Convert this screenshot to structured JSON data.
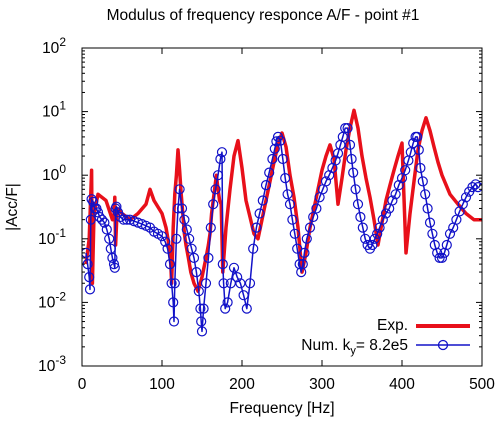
{
  "chart_data": {
    "type": "line",
    "title": "Modulus of frequency responce A/F - point #1",
    "xlabel": "Frequency [Hz]",
    "ylabel": "|Acc/F|",
    "xlim": [
      0,
      500
    ],
    "ylim": [
      0.001,
      100
    ],
    "yscale": "log",
    "grid": false,
    "legend_position": "bottom-right",
    "x_ticks": [
      "0",
      "100",
      "200",
      "300",
      "400",
      "500"
    ],
    "y_ticks": [
      {
        "base": "10",
        "exp": "-3"
      },
      {
        "base": "10",
        "exp": "-2"
      },
      {
        "base": "10",
        "exp": "-1"
      },
      {
        "base": "10",
        "exp": "0"
      },
      {
        "base": "10",
        "exp": "1"
      },
      {
        "base": "10",
        "exp": "2"
      }
    ],
    "series": [
      {
        "name": "Exp.",
        "color": "#e8101a",
        "style": "thick-line",
        "x": [
          5,
          9,
          11,
          12,
          13,
          15,
          20,
          30,
          38,
          40,
          41,
          42,
          44,
          50,
          60,
          70,
          80,
          85,
          90,
          100,
          105,
          108,
          111,
          112,
          113,
          114,
          116,
          118,
          120,
          122,
          124,
          126,
          128,
          130,
          133,
          136,
          140,
          145,
          150,
          155,
          158,
          160,
          162,
          165,
          168,
          170,
          172,
          174,
          176,
          180,
          185,
          190,
          195,
          200,
          205,
          210,
          215,
          220,
          225,
          230,
          235,
          240,
          245,
          250,
          255,
          260,
          265,
          270,
          275,
          280,
          285,
          290,
          295,
          300,
          305,
          310,
          315,
          320,
          325,
          330,
          335,
          340,
          345,
          350,
          355,
          360,
          365,
          370,
          375,
          380,
          385,
          390,
          395,
          400,
          405,
          410,
          415,
          420,
          425,
          430,
          435,
          440,
          445,
          450,
          460,
          470,
          480,
          490,
          500
        ],
        "y": [
          0.04,
          0.1,
          0.5,
          1.2,
          0.02,
          0.25,
          0.5,
          0.4,
          0.2,
          0.22,
          0.45,
          0.08,
          0.3,
          0.25,
          0.2,
          0.25,
          0.35,
          0.6,
          0.4,
          0.25,
          0.15,
          0.09,
          0.04,
          0.02,
          0.05,
          0.15,
          0.5,
          1.0,
          2.5,
          1.2,
          0.5,
          0.25,
          0.12,
          0.08,
          0.05,
          0.03,
          0.02,
          0.015,
          0.025,
          0.05,
          0.08,
          0.12,
          0.25,
          0.5,
          1.0,
          0.6,
          0.4,
          0.35,
          0.03,
          0.15,
          0.6,
          2.0,
          3.5,
          1.3,
          0.4,
          0.22,
          0.12,
          0.1,
          0.2,
          0.4,
          0.8,
          1.6,
          3.0,
          4.6,
          2.8,
          1.0,
          0.45,
          0.15,
          0.03,
          0.06,
          0.15,
          0.3,
          0.6,
          1.2,
          2.0,
          3.0,
          1.8,
          0.35,
          0.9,
          2.5,
          5.5,
          10.5,
          5.5,
          2.0,
          0.9,
          0.45,
          0.2,
          0.08,
          0.18,
          0.4,
          0.7,
          1.2,
          2.0,
          3.2,
          0.06,
          0.25,
          0.8,
          2.5,
          5.0,
          8.0,
          5.0,
          2.8,
          1.6,
          1.0,
          0.5,
          0.35,
          0.25,
          0.2,
          0.2
        ]
      },
      {
        "name": "Num. k",
        "name_sub": "y",
        "name_suffix": "= 8.2e5",
        "color": "#1212c8",
        "style": "line-circles",
        "x": [
          5,
          7,
          9,
          10,
          11,
          12,
          14,
          16,
          18,
          20,
          22,
          25,
          28,
          31,
          34,
          36,
          38,
          40,
          41,
          42,
          43,
          45,
          48,
          52,
          56,
          60,
          65,
          70,
          75,
          80,
          85,
          90,
          95,
          100,
          104,
          107,
          110,
          112,
          114,
          115,
          116,
          118,
          120,
          122,
          125,
          128,
          131,
          134,
          137,
          140,
          143,
          146,
          148,
          149,
          150,
          152,
          155,
          158,
          161,
          164,
          167,
          170,
          173,
          175,
          176,
          177,
          179,
          182,
          186,
          190,
          194,
          198,
          202,
          206,
          210,
          214,
          218,
          222,
          226,
          230,
          234,
          238,
          241,
          243,
          245,
          248,
          251,
          254,
          257,
          260,
          263,
          266,
          269,
          272,
          274,
          276,
          278,
          281,
          285,
          289,
          293,
          297,
          301,
          305,
          309,
          313,
          317,
          320,
          323,
          326,
          329,
          332,
          335,
          337,
          339,
          342,
          345,
          348,
          351,
          354,
          357,
          360,
          363,
          366,
          369,
          372,
          376,
          380,
          384,
          388,
          392,
          396,
          400,
          404,
          408,
          411,
          414,
          417,
          419,
          421,
          423,
          426,
          429,
          432,
          435,
          438,
          441,
          444,
          447,
          450,
          453,
          456,
          460,
          464,
          468,
          472,
          476,
          480,
          484,
          488,
          492,
          495
        ],
        "y": [
          0.06,
          0.04,
          0.025,
          0.016,
          0.2,
          0.42,
          0.38,
          0.3,
          0.3,
          0.26,
          0.22,
          0.2,
          0.18,
          0.14,
          0.1,
          0.07,
          0.05,
          0.04,
          0.035,
          0.3,
          0.32,
          0.26,
          0.22,
          0.2,
          0.2,
          0.2,
          0.19,
          0.18,
          0.17,
          0.16,
          0.15,
          0.13,
          0.12,
          0.11,
          0.09,
          0.07,
          0.04,
          0.02,
          0.01,
          0.005,
          0.02,
          0.1,
          0.3,
          0.6,
          0.3,
          0.2,
          0.14,
          0.1,
          0.07,
          0.05,
          0.03,
          0.015,
          0.008,
          0.005,
          0.0035,
          0.008,
          0.02,
          0.05,
          0.15,
          0.35,
          0.6,
          1.0,
          1.8,
          2.3,
          0.04,
          0.02,
          0.008,
          0.01,
          0.02,
          0.035,
          0.025,
          0.02,
          0.013,
          0.008,
          0.02,
          0.07,
          0.15,
          0.25,
          0.4,
          0.7,
          1.1,
          1.8,
          2.6,
          3.4,
          4.0,
          3.5,
          1.8,
          0.9,
          0.5,
          0.35,
          0.2,
          0.12,
          0.07,
          0.04,
          0.03,
          0.04,
          0.06,
          0.1,
          0.15,
          0.22,
          0.3,
          0.45,
          0.6,
          0.8,
          1.0,
          1.3,
          1.7,
          2.2,
          3.0,
          4.0,
          5.5,
          5.5,
          3.0,
          1.8,
          1.1,
          0.6,
          0.35,
          0.22,
          0.15,
          0.1,
          0.08,
          0.07,
          0.08,
          0.1,
          0.12,
          0.15,
          0.2,
          0.25,
          0.3,
          0.4,
          0.5,
          0.7,
          0.9,
          1.2,
          1.7,
          2.3,
          3.2,
          4.0,
          4.0,
          2.5,
          1.3,
          0.8,
          0.5,
          0.3,
          0.18,
          0.12,
          0.08,
          0.06,
          0.05,
          0.05,
          0.06,
          0.08,
          0.12,
          0.15,
          0.2,
          0.27,
          0.35,
          0.45,
          0.55,
          0.65,
          0.72,
          0.65
        ]
      }
    ]
  }
}
